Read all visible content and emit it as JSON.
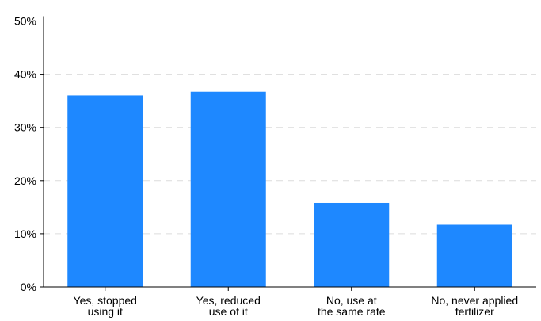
{
  "chart_data": {
    "type": "bar",
    "categories": [
      [
        "Yes, stopped",
        "using it"
      ],
      [
        "Yes, reduced",
        "use of it"
      ],
      [
        "No, use at",
        "the same rate"
      ],
      [
        "No, never applied",
        "fertilizer"
      ]
    ],
    "values": [
      36.0,
      36.7,
      15.8,
      11.7
    ],
    "ylim": [
      0,
      50
    ],
    "yticks": [
      0,
      10,
      20,
      30,
      40,
      50
    ],
    "ytick_labels": [
      "0%",
      "10%",
      "20%",
      "30%",
      "40%",
      "50%"
    ],
    "grid": true,
    "bar_color": "#1e88ff",
    "title": "",
    "xlabel": "",
    "ylabel": ""
  }
}
